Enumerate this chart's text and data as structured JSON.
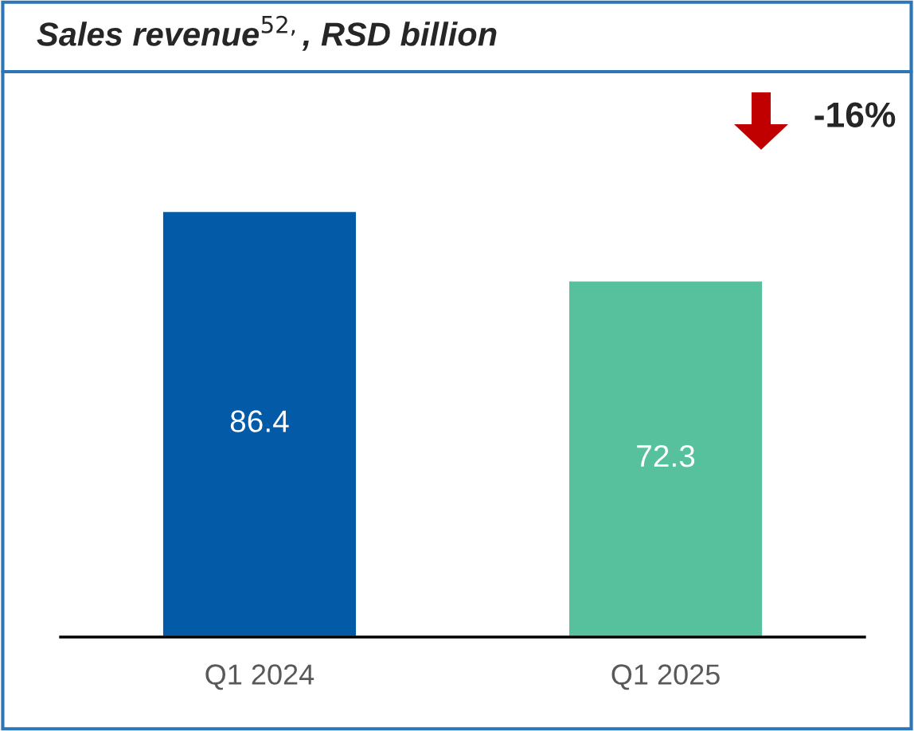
{
  "chart_data": {
    "type": "bar",
    "title": "Sales revenue$^{52,}$, RSD billion",
    "categories": [
      "Q1 2024",
      "Q1 2025"
    ],
    "values": [
      86.4,
      72.3
    ],
    "colors": [
      "#035aa6",
      "#57c09c"
    ],
    "tick_labels": "x",
    "data_labels": true,
    "grid": false,
    "legend": false,
    "annotations": [
      "-16%"
    ]
  }
}
